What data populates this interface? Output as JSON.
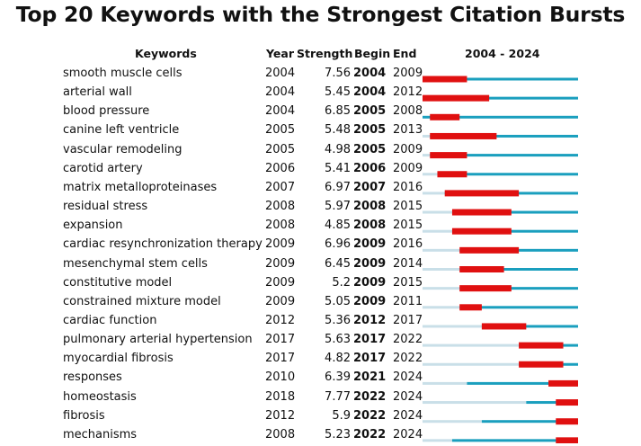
{
  "chart_data": {
    "type": "burst-timeline",
    "title": "Top 20 Keywords with the Strongest Citation Bursts",
    "columns": [
      "Keywords",
      "Year",
      "Strength",
      "Begin",
      "End",
      "2004 - 2024"
    ],
    "range_start": 2004,
    "range_end": 2024,
    "colors": {
      "pre_year": "#c9dfe8",
      "active": "#1a9fbe",
      "burst": "#e01010"
    },
    "rows": [
      {
        "keyword": "smooth muscle cells",
        "year": 2004,
        "strength": "7.56",
        "begin": 2004,
        "end": 2009
      },
      {
        "keyword": "arterial wall",
        "year": 2004,
        "strength": "5.45",
        "begin": 2004,
        "end": 2012
      },
      {
        "keyword": "blood pressure",
        "year": 2004,
        "strength": "6.85",
        "begin": 2005,
        "end": 2008
      },
      {
        "keyword": "canine left ventricle",
        "year": 2005,
        "strength": "5.48",
        "begin": 2005,
        "end": 2013
      },
      {
        "keyword": "vascular remodeling",
        "year": 2005,
        "strength": "4.98",
        "begin": 2005,
        "end": 2009
      },
      {
        "keyword": "carotid artery",
        "year": 2006,
        "strength": "5.41",
        "begin": 2006,
        "end": 2009
      },
      {
        "keyword": "matrix metalloproteinases",
        "year": 2007,
        "strength": "6.97",
        "begin": 2007,
        "end": 2016
      },
      {
        "keyword": "residual stress",
        "year": 2008,
        "strength": "5.97",
        "begin": 2008,
        "end": 2015
      },
      {
        "keyword": "expansion",
        "year": 2008,
        "strength": "4.85",
        "begin": 2008,
        "end": 2015
      },
      {
        "keyword": "cardiac resynchronization therapy",
        "year": 2009,
        "strength": "6.96",
        "begin": 2009,
        "end": 2016
      },
      {
        "keyword": "mesenchymal stem cells",
        "year": 2009,
        "strength": "6.45",
        "begin": 2009,
        "end": 2014
      },
      {
        "keyword": "constitutive model",
        "year": 2009,
        "strength": "5.2",
        "begin": 2009,
        "end": 2015
      },
      {
        "keyword": "constrained mixture model",
        "year": 2009,
        "strength": "5.05",
        "begin": 2009,
        "end": 2011
      },
      {
        "keyword": "cardiac function",
        "year": 2012,
        "strength": "5.36",
        "begin": 2012,
        "end": 2017
      },
      {
        "keyword": "pulmonary arterial hypertension",
        "year": 2017,
        "strength": "5.63",
        "begin": 2017,
        "end": 2022
      },
      {
        "keyword": "myocardial fibrosis",
        "year": 2017,
        "strength": "4.82",
        "begin": 2017,
        "end": 2022
      },
      {
        "keyword": "responses",
        "year": 2010,
        "strength": "6.39",
        "begin": 2021,
        "end": 2024
      },
      {
        "keyword": "homeostasis",
        "year": 2018,
        "strength": "7.77",
        "begin": 2022,
        "end": 2024
      },
      {
        "keyword": "fibrosis",
        "year": 2012,
        "strength": "5.9",
        "begin": 2022,
        "end": 2024
      },
      {
        "keyword": "mechanisms",
        "year": 2008,
        "strength": "5.23",
        "begin": 2022,
        "end": 2024
      }
    ]
  }
}
